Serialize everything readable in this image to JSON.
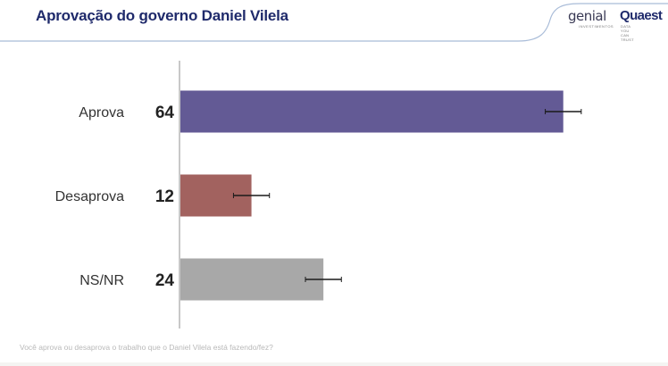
{
  "header": {
    "title": "Aprovação do governo Daniel Vilela",
    "logo_genial": "genial",
    "logo_genial_sub": "INVESTIMENTOS",
    "logo_quaest": "Quaest",
    "logo_quaest_sub": "DATA YOU CAN TRUST"
  },
  "chart_data": {
    "type": "bar",
    "orientation": "horizontal",
    "categories": [
      "Aprova",
      "Desaprova",
      "NS/NR"
    ],
    "values": [
      64,
      12,
      24
    ],
    "data_labels": [
      "64",
      "12",
      "24"
    ],
    "error_margin": 3,
    "colors": [
      "#635a95",
      "#a2625f",
      "#a8a8a8"
    ],
    "xlim": [
      0,
      70
    ],
    "grid": false,
    "title": "",
    "xlabel": "",
    "ylabel": ""
  },
  "footnote": "Você aprova ou desaprova o trabalho que o Daniel Vilela está fazendo/fez?",
  "colors": {
    "title": "#1f2a6b",
    "accent_line": "#8fa8cc",
    "axis": "#c8c8c8"
  }
}
